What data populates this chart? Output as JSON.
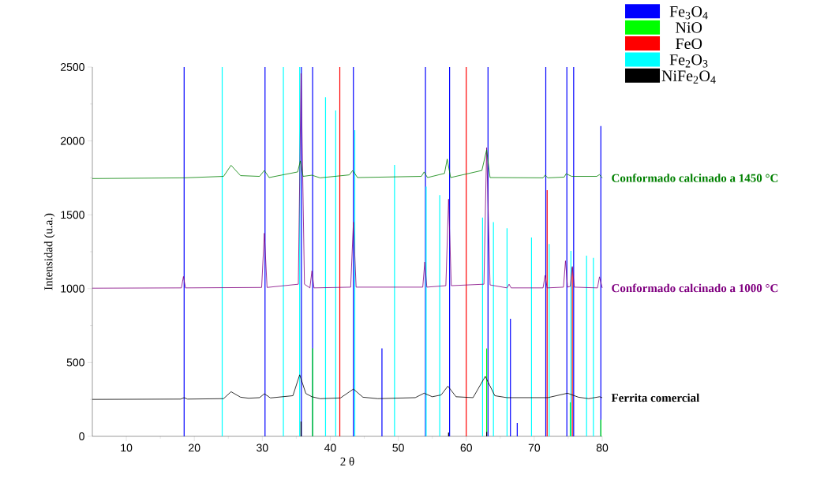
{
  "chart_data": {
    "type": "line",
    "xlabel": "2 θ",
    "ylabel": "Intensidad (u.a.)",
    "xlim": [
      5,
      80
    ],
    "xticks": [
      10,
      20,
      30,
      40,
      50,
      60,
      70,
      80
    ],
    "ylim": [
      0,
      2500
    ],
    "yticks": [
      0,
      500,
      1000,
      1500,
      2000,
      2500
    ],
    "legend": "top right",
    "series": [
      {
        "type": "bar",
        "name": "Fe$_{3}$O$_{4}$",
        "color": "#0000ff",
        "x": [
          18.5,
          30.4,
          35.75,
          37.4,
          43.4,
          47.6,
          54.0,
          57.55,
          63.2,
          66.5,
          67.5,
          71.7,
          74.8,
          75.8,
          79.8
        ],
        "values": [
          2500,
          2500,
          2500,
          2500,
          2500,
          595,
          2500,
          2500,
          2500,
          796,
          91,
          2500,
          2500,
          2500,
          2100
        ]
      },
      {
        "type": "bar",
        "name": "NiO",
        "color": "#00ff00",
        "x": [
          37.4,
          63.0,
          75.3,
          79.8
        ],
        "values": [
          595,
          595,
          230,
          114
        ]
      },
      {
        "type": "bar",
        "name": "FeO",
        "color": "#ff0000",
        "x": [
          41.4,
          60.0,
          71.9,
          75.6
        ],
        "values": [
          2500,
          2500,
          1667,
          1143
        ]
      },
      {
        "type": "bar",
        "name": "Fe$_{2}$O$_{3}$",
        "color": "#00ffff",
        "x": [
          24.1,
          33.1,
          35.5,
          39.3,
          40.8,
          43.6,
          49.45,
          54.1,
          56.1,
          62.4,
          64.0,
          66.0,
          69.6,
          72.2,
          75.4,
          77.7,
          78.7
        ],
        "values": [
          2500,
          2500,
          2500,
          2295,
          2206,
          2073,
          1838,
          1690,
          1633,
          1481,
          1450,
          1409,
          1346,
          1302,
          1255,
          1223,
          1209
        ]
      },
      {
        "type": "bar",
        "name": "NiFe$_{2}$O$_{4}$",
        "color": "#000000",
        "x": [
          35.7,
          57.4,
          63.0
        ],
        "values": [
          100,
          25,
          30
        ]
      },
      {
        "name": "Ferrita comercial",
        "color": "#000000",
        "x": [
          5,
          18.0,
          18.5,
          19.0,
          24.3,
          25.4,
          26.8,
          28,
          29.6,
          30.3,
          31.2,
          34.5,
          35.5,
          36.4,
          37.3,
          38.5,
          41.5,
          43.4,
          44.8,
          47,
          52.5,
          53.8,
          55.0,
          56.3,
          57.3,
          58.5,
          61,
          62.8,
          64.2,
          66,
          72,
          74.9,
          76.5,
          78,
          79.6,
          80
        ],
        "values": [
          250,
          252,
          262,
          252,
          255,
          302,
          265,
          258,
          262,
          288,
          260,
          275,
          417,
          290,
          268,
          255,
          260,
          320,
          265,
          255,
          262,
          292,
          268,
          280,
          340,
          268,
          262,
          406,
          275,
          262,
          262,
          292,
          265,
          255,
          268,
          262
        ]
      },
      {
        "name": "Conformado calcinado a 1000 °C",
        "color": "#800080",
        "x": [
          5,
          18.1,
          18.4,
          18.7,
          29.9,
          30.3,
          30.7,
          35.3,
          35.7,
          36.2,
          37.0,
          37.3,
          37.6,
          43.0,
          43.4,
          43.8,
          53.6,
          53.9,
          54.2,
          57.0,
          57.4,
          57.8,
          62.6,
          63.0,
          63.5,
          66.0,
          66.3,
          66.6,
          71.3,
          71.6,
          71.9,
          74.3,
          74.6,
          74.9,
          75.3,
          75.6,
          75.9,
          79.3,
          79.6,
          80
        ],
        "values": [
          1003,
          1005,
          1082,
          1005,
          1008,
          1375,
          1008,
          1030,
          2457,
          1030,
          1005,
          1120,
          1005,
          1010,
          1450,
          1010,
          1010,
          1180,
          1010,
          1020,
          1606,
          1020,
          1030,
          1955,
          1025,
          1005,
          1030,
          1005,
          1005,
          1090,
          1005,
          1010,
          1188,
          1010,
          1015,
          1150,
          1010,
          1005,
          1080,
          1005
        ]
      },
      {
        "name": "Conformado calcinado a 1450 °C",
        "color": "#008000",
        "x": [
          5,
          18.5,
          24.3,
          25.4,
          26.8,
          29.6,
          30.3,
          31,
          35.2,
          35.6,
          36.0,
          37.3,
          38.5,
          42.8,
          43.3,
          44,
          53.4,
          53.8,
          54.3,
          56.8,
          57.2,
          57.7,
          62.3,
          63.0,
          63.5,
          71.3,
          71.6,
          72,
          74.4,
          74.7,
          75.5,
          79.2,
          79.6,
          80
        ],
        "values": [
          1745,
          1750,
          1760,
          1835,
          1765,
          1760,
          1800,
          1752,
          1790,
          1865,
          1760,
          1768,
          1750,
          1770,
          1800,
          1752,
          1760,
          1790,
          1752,
          1780,
          1877,
          1752,
          1800,
          1940,
          1752,
          1750,
          1768,
          1750,
          1755,
          1778,
          1760,
          1760,
          1772,
          1750
        ]
      }
    ]
  }
}
